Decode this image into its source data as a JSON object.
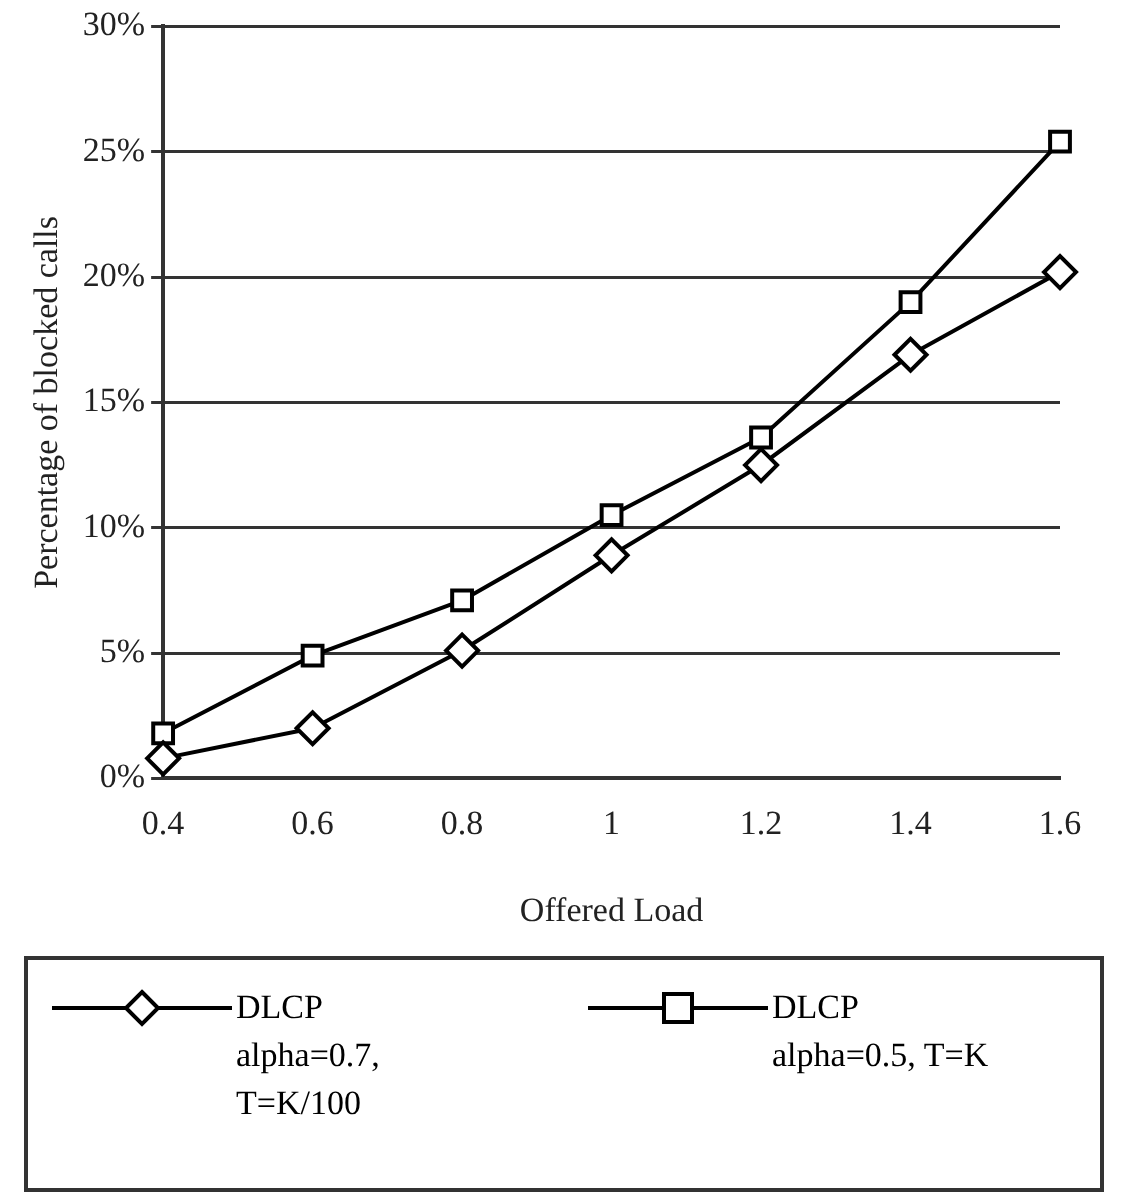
{
  "chart_data": {
    "type": "line",
    "xlabel": "Offered Load",
    "ylabel": "Percentage of blocked calls",
    "x": [
      0.4,
      0.6,
      0.8,
      1,
      1.2,
      1.4,
      1.6
    ],
    "series": [
      {
        "name": "DLCP alpha=0.7, T=K/100",
        "color": "#000000",
        "marker": "diamond",
        "values": [
          0.8,
          2.0,
          5.1,
          8.9,
          12.5,
          16.9,
          20.2
        ]
      },
      {
        "name": "DLCP alpha=0.5, T=K",
        "color": "#000000",
        "marker": "square",
        "values": [
          1.8,
          4.9,
          7.1,
          10.5,
          13.6,
          19.0,
          25.4
        ]
      }
    ],
    "xlim": [
      0.4,
      1.6
    ],
    "xticks": [
      0.4,
      0.6,
      0.8,
      1,
      1.2,
      1.4,
      1.6
    ],
    "ylim": [
      0,
      30
    ],
    "yticks": [
      {
        "value": 0,
        "label": "0%"
      },
      {
        "value": 5,
        "label": "5%"
      },
      {
        "value": 10,
        "label": "10%"
      },
      {
        "value": 15,
        "label": "15%"
      },
      {
        "value": 20,
        "label": "20%"
      },
      {
        "value": 25,
        "label": "25%"
      },
      {
        "value": 30,
        "label": "30%"
      }
    ],
    "grid": "y",
    "legend": "bottom",
    "line_style": "solid"
  }
}
